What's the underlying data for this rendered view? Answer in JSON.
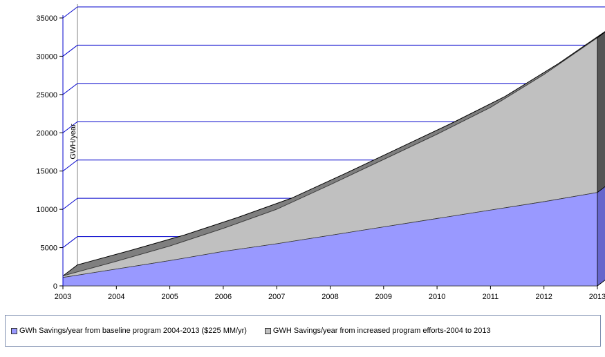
{
  "chart_data": {
    "type": "area",
    "stacked": true,
    "three_d": true,
    "x": [
      2003,
      2004,
      2005,
      2006,
      2007,
      2008,
      2009,
      2010,
      2011,
      2012,
      2013
    ],
    "x_tick_labels": [
      "2003",
      "2004",
      "2005",
      "2006",
      "2007",
      "2008",
      "2009",
      "2010",
      "2011",
      "2012",
      "2013"
    ],
    "y_tick_labels": [
      "0",
      "5000",
      "10000",
      "15000",
      "20000",
      "25000",
      "30000",
      "35000"
    ],
    "ylim": [
      0,
      35000
    ],
    "ylabel": "GWH/year",
    "xlabel": "",
    "title": "",
    "grid": true,
    "legend_placement": "bottom",
    "series": [
      {
        "name": "GWh Savings/year from baseline program 2004-2013 ($225 MM/yr)",
        "color": "#9999ff",
        "values": [
          1100,
          2200,
          3300,
          4500,
          5500,
          6600,
          7700,
          8800,
          9900,
          11000,
          12200
        ]
      },
      {
        "name": "GWH Savings/year from increased program efforts-2004 to 2013",
        "color": "#c0c0c0",
        "values": [
          200,
          1000,
          1900,
          3000,
          4500,
          6600,
          8800,
          11000,
          13400,
          16600,
          20200
        ]
      }
    ]
  }
}
